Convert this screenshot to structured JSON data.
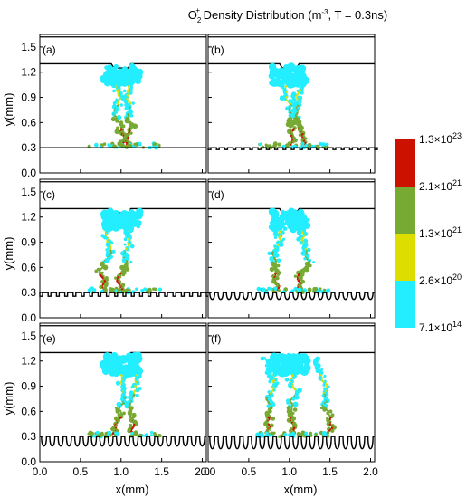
{
  "title": {
    "prefix": "O",
    "subscript": "2",
    "superscript": "+",
    "rest": " Density Distribution (m",
    "exp": "-3",
    "tail": ", T = 0.3ns)"
  },
  "chart_data": {
    "type": "heatmap",
    "xlabel": "x(mm)",
    "ylabel": "y(mm)",
    "xlim": [
      0.0,
      2.05
    ],
    "ylim": [
      0.0,
      1.65
    ],
    "xticks": [
      "0.0",
      "0.5",
      "1.0",
      "1.5",
      "2.0"
    ],
    "xtick_values": [
      0.0,
      0.5,
      1.0,
      1.5,
      2.0
    ],
    "yticks": [
      "0.0",
      "0.3",
      "0.6",
      "0.9",
      "1.2",
      "1.5"
    ],
    "ytick_values": [
      0.0,
      0.3,
      0.6,
      0.9,
      1.2,
      1.5
    ],
    "colorbar": {
      "labels": [
        {
          "base": "1.3×10",
          "exp": "23"
        },
        {
          "base": "2.1×10",
          "exp": "21"
        },
        {
          "base": "1.3×10",
          "exp": "21"
        },
        {
          "base": "2.6×10",
          "exp": "20"
        },
        {
          "base": "7.1×10",
          "exp": "14"
        }
      ],
      "colors": [
        "#cc1100",
        "#77aa33",
        "#dddd00",
        "#22eeff"
      ]
    },
    "panels": [
      {
        "label": "(a)",
        "electrode": "flat"
      },
      {
        "label": "(b)",
        "electrode": "small-notches"
      },
      {
        "label": "(c)",
        "electrode": "notches"
      },
      {
        "label": "(d)",
        "electrode": "waves-small"
      },
      {
        "label": "(e)",
        "electrode": "waves-medium"
      },
      {
        "label": "(f)",
        "electrode": "waves-large"
      }
    ]
  }
}
